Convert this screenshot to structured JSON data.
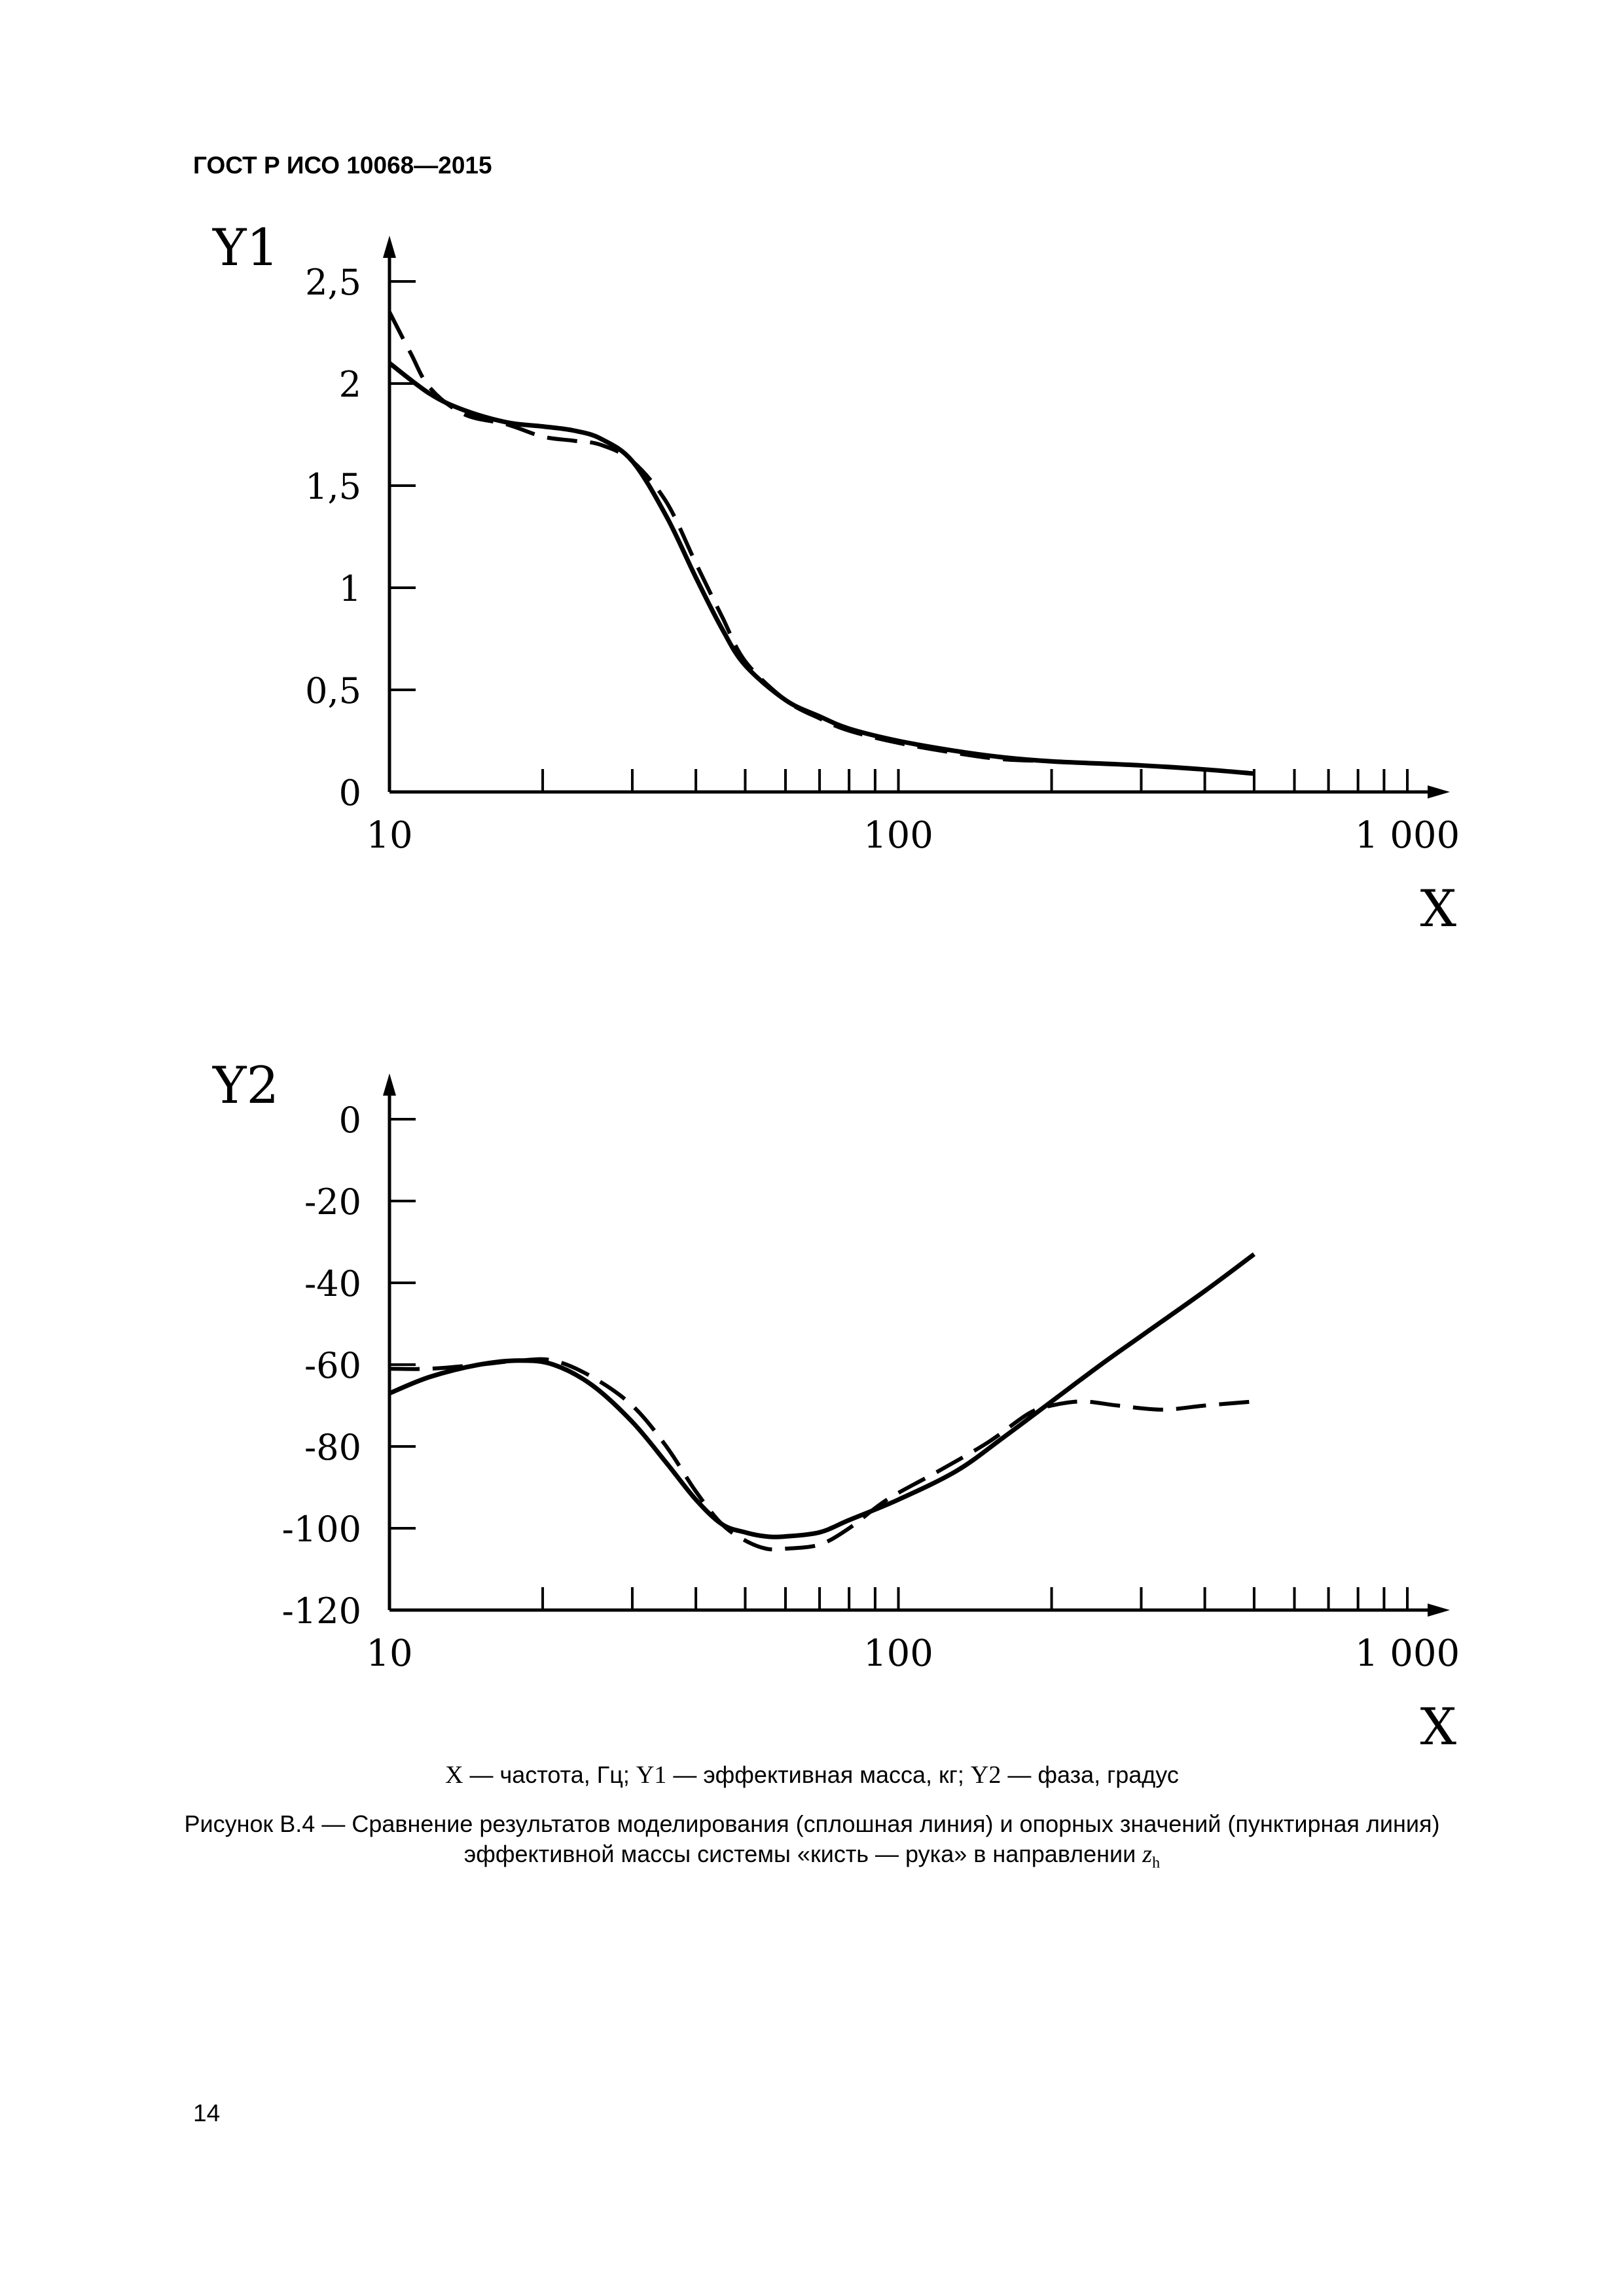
{
  "header": {
    "text": "ГОСТ Р ИСО 10068—2015"
  },
  "caption": {
    "legend_parts": [
      {
        "sym": "X",
        "text": " — частота, Гц; "
      },
      {
        "sym": "Y1",
        "text": " — эффективная масса, кг; "
      },
      {
        "sym": "Y2",
        "text": " — фаза, градус"
      }
    ],
    "title_line1": "Рисунок В.4 — Сравнение результатов моделирования (сплошная линия) и опорных значений (пунктирная линия)",
    "title_line2": "эффективной массы системы «кисть — рука» в направлении",
    "subscript_var": "z",
    "subscript_idx": "h"
  },
  "page_number": "14",
  "chart_data": [
    {
      "type": "line",
      "ylabel": "Y1",
      "xlabel": "X",
      "x_scale": "log",
      "xlim": [
        10,
        1000
      ],
      "ylim": [
        0,
        2.5
      ],
      "x_tick_labels": [
        "10",
        "100",
        "1 000"
      ],
      "y_tick_labels": [
        "0",
        "0,5",
        "1",
        "1,5",
        "2",
        "2,5"
      ],
      "y_ticks": [
        0,
        0.5,
        1,
        1.5,
        2,
        2.5
      ],
      "grid": false,
      "series": [
        {
          "style": "solid",
          "x": [
            10,
            12,
            14,
            17,
            20,
            23,
            26,
            30,
            35,
            40,
            45,
            50,
            60,
            70,
            80,
            100,
            130,
            160,
            200,
            300,
            400,
            500
          ],
          "y": [
            2.1,
            1.95,
            1.87,
            1.81,
            1.79,
            1.77,
            1.73,
            1.62,
            1.35,
            1.05,
            0.8,
            0.62,
            0.45,
            0.37,
            0.31,
            0.25,
            0.2,
            0.17,
            0.15,
            0.13,
            0.11,
            0.09
          ]
        },
        {
          "style": "dashed",
          "x": [
            10,
            11,
            12,
            14,
            17,
            20,
            23,
            26,
            30,
            35,
            40,
            45,
            50,
            60,
            70,
            80,
            100,
            130,
            160,
            200,
            300,
            400,
            500
          ],
          "y": [
            2.35,
            2.15,
            1.98,
            1.85,
            1.8,
            1.74,
            1.72,
            1.7,
            1.62,
            1.42,
            1.12,
            0.86,
            0.64,
            0.45,
            0.36,
            0.3,
            0.24,
            0.19,
            0.16,
            0.15,
            0.13,
            0.11,
            0.09
          ]
        }
      ]
    },
    {
      "type": "line",
      "ylabel": "Y2",
      "xlabel": "X",
      "x_scale": "log",
      "xlim": [
        10,
        1000
      ],
      "ylim": [
        -120,
        0
      ],
      "x_tick_labels": [
        "10",
        "100",
        "1 000"
      ],
      "y_tick_labels": [
        "0",
        "-20",
        "-40",
        "-60",
        "-80",
        "-100",
        "-120"
      ],
      "y_ticks": [
        0,
        -20,
        -40,
        -60,
        -80,
        -100,
        -120
      ],
      "grid": false,
      "series": [
        {
          "style": "solid",
          "x": [
            10,
            12,
            15,
            18,
            21,
            25,
            30,
            35,
            40,
            45,
            50,
            55,
            60,
            70,
            80,
            100,
            130,
            160,
            200,
            250,
            300,
            400,
            500
          ],
          "y": [
            -67,
            -63,
            -60,
            -59,
            -60,
            -65,
            -74,
            -84,
            -93,
            -99,
            -101,
            -102,
            -102,
            -101,
            -98,
            -93,
            -86,
            -78,
            -69,
            -60,
            -53,
            -42,
            -33
          ]
        },
        {
          "style": "dashed",
          "x": [
            10,
            12,
            15,
            18,
            21,
            25,
            30,
            35,
            40,
            45,
            50,
            55,
            60,
            70,
            80,
            95,
            120,
            150,
            180,
            200,
            230,
            270,
            330,
            400,
            500
          ],
          "y": [
            -61,
            -61,
            -60,
            -59,
            -59,
            -63,
            -70,
            -80,
            -91,
            -99,
            -103,
            -105,
            -105,
            -104,
            -100,
            -93,
            -86,
            -79,
            -72,
            -70,
            -69,
            -70,
            -71,
            -70,
            -69
          ]
        }
      ]
    }
  ]
}
